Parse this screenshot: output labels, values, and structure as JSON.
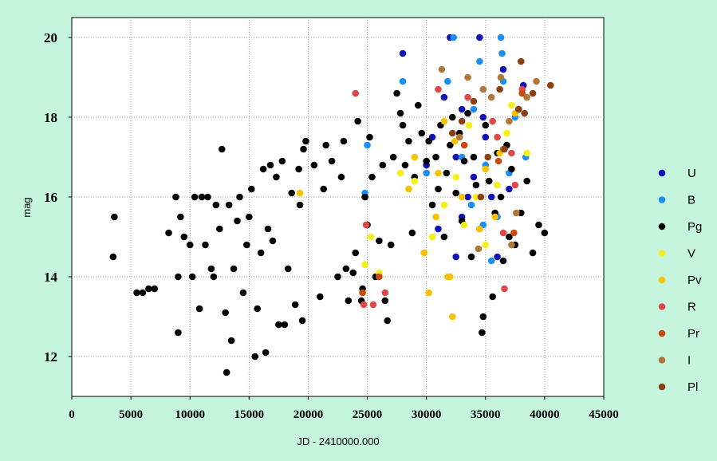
{
  "chart_data": {
    "type": "scatter",
    "title": "",
    "xlabel": "JD - 2410000.000",
    "ylabel": "mag",
    "xlim": [
      0,
      45000
    ],
    "ylim": [
      11,
      20.5
    ],
    "x_ticks": [
      "0",
      "5000",
      "10000",
      "15000",
      "20000",
      "25000",
      "30000",
      "35000",
      "40000",
      "45000"
    ],
    "y_ticks": [
      "12",
      "14",
      "16",
      "18",
      "20"
    ],
    "x_tick_values": [
      0,
      5000,
      10000,
      15000,
      20000,
      25000,
      30000,
      35000,
      40000,
      45000
    ],
    "y_tick_values": [
      12,
      14,
      16,
      18,
      20
    ],
    "grid": true,
    "legend_position": "right",
    "series": [
      {
        "name": "U",
        "color": "#1010b8",
        "points": [
          [
            28000,
            19.6
          ],
          [
            32000,
            20.0
          ],
          [
            34500,
            20.0
          ],
          [
            31500,
            18.5
          ],
          [
            33000,
            18.2
          ],
          [
            30500,
            17.5
          ],
          [
            32500,
            17.0
          ],
          [
            34000,
            16.5
          ],
          [
            35500,
            16.0
          ],
          [
            33000,
            15.5
          ],
          [
            31000,
            15.2
          ],
          [
            36000,
            14.5
          ],
          [
            32500,
            14.5
          ],
          [
            35000,
            17.5
          ],
          [
            37000,
            16.2
          ],
          [
            38200,
            18.8
          ],
          [
            36500,
            19.2
          ],
          [
            30000,
            16.8
          ],
          [
            34800,
            18.0
          ],
          [
            33500,
            16.0
          ]
        ]
      },
      {
        "name": "B",
        "color": "#1a8ef5",
        "points": [
          [
            32300,
            20.0
          ],
          [
            36300,
            20.0
          ],
          [
            28000,
            18.9
          ],
          [
            31800,
            18.9
          ],
          [
            34500,
            19.4
          ],
          [
            36400,
            19.6
          ],
          [
            36500,
            18.9
          ],
          [
            34000,
            18.2
          ],
          [
            33000,
            17.0
          ],
          [
            35000,
            16.8
          ],
          [
            37500,
            18.0
          ],
          [
            36000,
            15.5
          ],
          [
            25000,
            17.3
          ],
          [
            24800,
            16.1
          ],
          [
            30000,
            16.6
          ],
          [
            35500,
            14.4
          ],
          [
            34800,
            15.3
          ],
          [
            38400,
            17.0
          ],
          [
            37000,
            16.6
          ],
          [
            33800,
            15.8
          ]
        ]
      },
      {
        "name": "Pg",
        "color": "#000000",
        "points": [
          [
            3600,
            15.5
          ],
          [
            3500,
            14.5
          ],
          [
            5500,
            13.6
          ],
          [
            6000,
            13.6
          ],
          [
            6500,
            13.7
          ],
          [
            7000,
            13.7
          ],
          [
            8200,
            15.1
          ],
          [
            8800,
            16.0
          ],
          [
            9000,
            14.0
          ],
          [
            9000,
            12.6
          ],
          [
            9500,
            15.0
          ],
          [
            9200,
            15.5
          ],
          [
            10000,
            14.8
          ],
          [
            10200,
            14.0
          ],
          [
            10400,
            16.0
          ],
          [
            10800,
            13.2
          ],
          [
            11000,
            16.0
          ],
          [
            11300,
            14.8
          ],
          [
            11500,
            16.0
          ],
          [
            11800,
            14.2
          ],
          [
            12000,
            14.0
          ],
          [
            12200,
            15.8
          ],
          [
            12500,
            15.2
          ],
          [
            12700,
            17.2
          ],
          [
            13000,
            13.1
          ],
          [
            13100,
            11.6
          ],
          [
            13300,
            15.8
          ],
          [
            13500,
            12.4
          ],
          [
            13700,
            14.2
          ],
          [
            14000,
            15.4
          ],
          [
            14200,
            16.0
          ],
          [
            14500,
            13.6
          ],
          [
            14800,
            14.8
          ],
          [
            15000,
            15.5
          ],
          [
            15200,
            16.2
          ],
          [
            15500,
            12.0
          ],
          [
            15700,
            13.2
          ],
          [
            16000,
            14.6
          ],
          [
            16200,
            16.7
          ],
          [
            16400,
            12.1
          ],
          [
            16600,
            15.2
          ],
          [
            16800,
            16.8
          ],
          [
            17000,
            14.9
          ],
          [
            17300,
            16.5
          ],
          [
            17500,
            12.8
          ],
          [
            17800,
            16.9
          ],
          [
            18000,
            12.8
          ],
          [
            18300,
            14.2
          ],
          [
            18600,
            16.1
          ],
          [
            18900,
            13.3
          ],
          [
            19200,
            16.7
          ],
          [
            19300,
            15.8
          ],
          [
            19500,
            12.9
          ],
          [
            19600,
            17.2
          ],
          [
            19800,
            17.4
          ],
          [
            20500,
            16.8
          ],
          [
            21000,
            13.5
          ],
          [
            21300,
            16.2
          ],
          [
            21500,
            17.3
          ],
          [
            22000,
            16.9
          ],
          [
            22800,
            16.5
          ],
          [
            23000,
            17.4
          ],
          [
            23200,
            14.2
          ],
          [
            23400,
            13.4
          ],
          [
            23800,
            14.1
          ],
          [
            24000,
            14.6
          ],
          [
            24200,
            17.9
          ],
          [
            24500,
            13.4
          ],
          [
            24800,
            16.0
          ],
          [
            25000,
            15.3
          ],
          [
            25200,
            17.5
          ],
          [
            25400,
            16.5
          ],
          [
            25700,
            14.0
          ],
          [
            26000,
            14.9
          ],
          [
            26300,
            16.8
          ],
          [
            26500,
            13.4
          ],
          [
            26700,
            12.9
          ],
          [
            27000,
            14.8
          ],
          [
            27200,
            17.0
          ],
          [
            27500,
            18.6
          ],
          [
            27800,
            18.1
          ],
          [
            28000,
            17.8
          ],
          [
            28200,
            16.8
          ],
          [
            28500,
            17.4
          ],
          [
            28800,
            15.1
          ],
          [
            29000,
            16.5
          ],
          [
            29300,
            18.3
          ],
          [
            29600,
            17.6
          ],
          [
            30000,
            16.9
          ],
          [
            30200,
            17.4
          ],
          [
            30500,
            15.8
          ],
          [
            30800,
            17.0
          ],
          [
            31000,
            16.2
          ],
          [
            31200,
            17.8
          ],
          [
            31500,
            15.0
          ],
          [
            31700,
            16.6
          ],
          [
            32000,
            17.3
          ],
          [
            32200,
            18.0
          ],
          [
            32500,
            16.1
          ],
          [
            32800,
            17.6
          ],
          [
            33000,
            15.4
          ],
          [
            33200,
            16.9
          ],
          [
            33500,
            18.1
          ],
          [
            33800,
            14.5
          ],
          [
            34000,
            17.0
          ],
          [
            34200,
            16.3
          ],
          [
            34500,
            15.2
          ],
          [
            34700,
            12.6
          ],
          [
            34800,
            13.0
          ],
          [
            35000,
            17.8
          ],
          [
            35300,
            16.4
          ],
          [
            35600,
            13.5
          ],
          [
            35800,
            15.6
          ],
          [
            36000,
            17.1
          ],
          [
            36300,
            16.0
          ],
          [
            36500,
            14.4
          ],
          [
            36800,
            17.3
          ],
          [
            37000,
            15.0
          ],
          [
            37200,
            16.7
          ],
          [
            37500,
            14.8
          ],
          [
            37800,
            18.2
          ],
          [
            38000,
            15.6
          ],
          [
            38500,
            16.4
          ],
          [
            39500,
            15.3
          ],
          [
            40000,
            15.1
          ],
          [
            39000,
            14.6
          ],
          [
            24600,
            13.7
          ],
          [
            22500,
            14.0
          ]
        ]
      },
      {
        "name": "V",
        "color": "#f7ef1a",
        "points": [
          [
            24800,
            14.3
          ],
          [
            25300,
            15.0
          ],
          [
            26000,
            14.1
          ],
          [
            30500,
            15.0
          ],
          [
            33200,
            15.3
          ],
          [
            35000,
            14.8
          ],
          [
            36800,
            17.6
          ],
          [
            32500,
            16.5
          ],
          [
            29000,
            16.4
          ],
          [
            34200,
            16.0
          ],
          [
            37200,
            18.3
          ],
          [
            38500,
            17.1
          ],
          [
            31500,
            15.8
          ],
          [
            36000,
            16.3
          ],
          [
            27800,
            16.6
          ],
          [
            33600,
            17.8
          ]
        ]
      },
      {
        "name": "Pv",
        "color": "#f7c200",
        "points": [
          [
            19300,
            16.1
          ],
          [
            29800,
            14.6
          ],
          [
            30200,
            13.6
          ],
          [
            31800,
            14.0
          ],
          [
            32000,
            14.0
          ],
          [
            32200,
            13.0
          ],
          [
            31000,
            16.6
          ],
          [
            29000,
            17.0
          ],
          [
            28500,
            16.2
          ],
          [
            30800,
            15.5
          ],
          [
            32400,
            17.4
          ],
          [
            34500,
            15.2
          ],
          [
            35000,
            16.7
          ],
          [
            36200,
            17.1
          ],
          [
            37500,
            18.1
          ],
          [
            33000,
            16.0
          ],
          [
            35800,
            15.5
          ],
          [
            31500,
            17.9
          ]
        ]
      },
      {
        "name": "R",
        "color": "#e04848",
        "points": [
          [
            24000,
            18.6
          ],
          [
            24700,
            13.3
          ],
          [
            25500,
            13.3
          ],
          [
            24900,
            15.3
          ],
          [
            26500,
            13.6
          ],
          [
            33500,
            18.5
          ],
          [
            36000,
            17.5
          ],
          [
            36500,
            15.1
          ],
          [
            37200,
            17.1
          ],
          [
            38100,
            18.7
          ],
          [
            37500,
            16.3
          ],
          [
            36600,
            13.7
          ],
          [
            31000,
            18.7
          ],
          [
            35600,
            17.9
          ]
        ]
      },
      {
        "name": "Pr",
        "color": "#c84a10",
        "points": [
          [
            26000,
            14.0
          ],
          [
            24600,
            13.6
          ],
          [
            38100,
            18.6
          ],
          [
            37400,
            15.1
          ],
          [
            33200,
            17.3
          ],
          [
            36100,
            16.9
          ]
        ]
      },
      {
        "name": "I",
        "color": "#b07838",
        "points": [
          [
            34800,
            18.7
          ],
          [
            33500,
            19.0
          ],
          [
            31300,
            19.2
          ],
          [
            35500,
            18.5
          ],
          [
            37000,
            17.9
          ],
          [
            36300,
            19.0
          ],
          [
            38500,
            18.5
          ],
          [
            39300,
            18.9
          ],
          [
            37600,
            15.6
          ],
          [
            32800,
            17.5
          ],
          [
            36500,
            17.2
          ],
          [
            37200,
            14.8
          ],
          [
            34400,
            14.7
          ]
        ]
      },
      {
        "name": "Pl",
        "color": "#8a4010",
        "points": [
          [
            40500,
            18.8
          ],
          [
            38000,
            19.4
          ],
          [
            39000,
            18.6
          ],
          [
            37800,
            18.2
          ],
          [
            36200,
            18.7
          ],
          [
            35200,
            17.0
          ],
          [
            34000,
            18.4
          ],
          [
            33000,
            17.9
          ],
          [
            36600,
            17.2
          ],
          [
            34600,
            16.0
          ],
          [
            38300,
            18.1
          ],
          [
            32200,
            17.6
          ]
        ]
      }
    ]
  }
}
